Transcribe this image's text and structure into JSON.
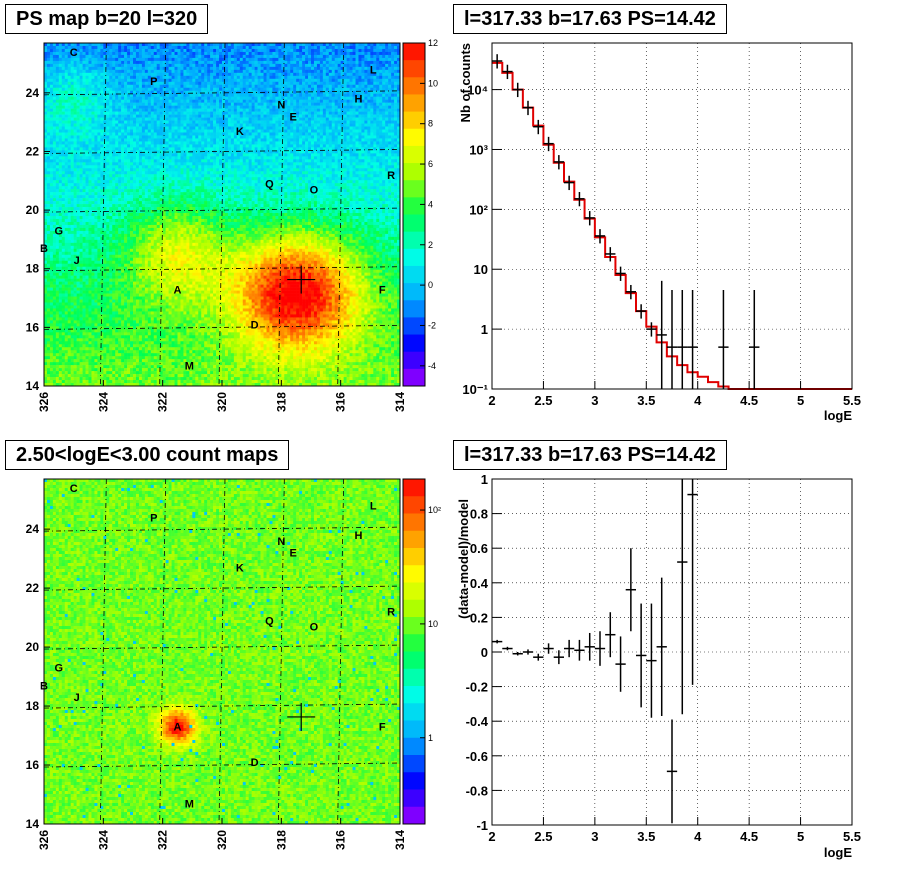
{
  "titles": {
    "top_left": "PS map b=20 l=320",
    "bottom_left": "2.50<logE<3.00 count maps",
    "top_right": "l=317.33 b=17.63 PS=14.42",
    "bottom_right": "l=317.33 b=17.63 PS=14.42"
  },
  "chart_data": [
    {
      "type": "heatmap",
      "title": "PS map b=20 l=320",
      "xlim": [
        326,
        314
      ],
      "ylim": [
        14,
        25.7
      ],
      "x_ticks": [
        "326",
        "324",
        "322",
        "320",
        "318",
        "316",
        "314"
      ],
      "y_ticks": [
        "14",
        "16",
        "18",
        "20",
        "22",
        "24"
      ],
      "colorbar": {
        "min": -5,
        "max": 12,
        "ticks": [
          "12",
          "10",
          "8",
          "6",
          "4",
          "2",
          "0",
          "-2",
          "-4"
        ]
      },
      "sources": [
        {
          "label": "C",
          "l": 325.0,
          "b": 25.4
        },
        {
          "label": "P",
          "l": 322.3,
          "b": 24.4
        },
        {
          "label": "L",
          "l": 314.9,
          "b": 24.8
        },
        {
          "label": "N",
          "l": 318.0,
          "b": 23.6
        },
        {
          "label": "E",
          "l": 317.6,
          "b": 23.2
        },
        {
          "label": "H",
          "l": 315.4,
          "b": 23.8
        },
        {
          "label": "K",
          "l": 319.4,
          "b": 22.7
        },
        {
          "label": "R",
          "l": 314.3,
          "b": 21.2
        },
        {
          "label": "Q",
          "l": 318.4,
          "b": 20.9
        },
        {
          "label": "O",
          "l": 316.9,
          "b": 20.7
        },
        {
          "label": "G",
          "l": 325.5,
          "b": 19.3
        },
        {
          "label": "B",
          "l": 326.0,
          "b": 18.7
        },
        {
          "label": "J",
          "l": 324.9,
          "b": 18.3
        },
        {
          "label": "A",
          "l": 321.5,
          "b": 17.3
        },
        {
          "label": "F",
          "l": 314.6,
          "b": 17.3
        },
        {
          "label": "D",
          "l": 318.9,
          "b": 16.1
        },
        {
          "label": "M",
          "l": 321.1,
          "b": 14.7
        }
      ],
      "marker": {
        "l": 317.33,
        "b": 17.63
      }
    },
    {
      "type": "heatmap",
      "title": "2.50<logE<3.00 count maps",
      "xlim": [
        326,
        314
      ],
      "ylim": [
        14,
        25.7
      ],
      "x_ticks": [
        "326",
        "324",
        "322",
        "320",
        "318",
        "316",
        "314"
      ],
      "y_ticks": [
        "14",
        "16",
        "18",
        "20",
        "22",
        "24"
      ],
      "colorbar": {
        "scale": "log",
        "ticks": [
          "10²",
          "10",
          "1"
        ]
      },
      "sources": [
        {
          "label": "C",
          "l": 325.0,
          "b": 25.4
        },
        {
          "label": "P",
          "l": 322.3,
          "b": 24.4
        },
        {
          "label": "L",
          "l": 314.9,
          "b": 24.8
        },
        {
          "label": "N",
          "l": 318.0,
          "b": 23.6
        },
        {
          "label": "E",
          "l": 317.6,
          "b": 23.2
        },
        {
          "label": "H",
          "l": 315.4,
          "b": 23.8
        },
        {
          "label": "K",
          "l": 319.4,
          "b": 22.7
        },
        {
          "label": "R",
          "l": 314.3,
          "b": 21.2
        },
        {
          "label": "Q",
          "l": 318.4,
          "b": 20.9
        },
        {
          "label": "O",
          "l": 316.9,
          "b": 20.7
        },
        {
          "label": "G",
          "l": 325.5,
          "b": 19.3
        },
        {
          "label": "B",
          "l": 326.0,
          "b": 18.7
        },
        {
          "label": "J",
          "l": 324.9,
          "b": 18.3
        },
        {
          "label": "A",
          "l": 321.5,
          "b": 17.3
        },
        {
          "label": "F",
          "l": 314.6,
          "b": 17.3
        },
        {
          "label": "D",
          "l": 318.9,
          "b": 16.1
        },
        {
          "label": "M",
          "l": 321.1,
          "b": 14.7
        }
      ],
      "marker": {
        "l": 317.33,
        "b": 17.63
      }
    },
    {
      "type": "line",
      "title": "l=317.33 b=17.63 PS=14.42",
      "xlabel": "logE",
      "ylabel": "Nb of counts",
      "yscale": "log",
      "xlim": [
        2,
        5.5
      ],
      "ylim": [
        0.1,
        60000
      ],
      "x_ticks": [
        "2",
        "2.5",
        "3",
        "3.5",
        "4",
        "4.5",
        "5",
        "5.5"
      ],
      "y_ticks": [
        "10⁻¹",
        "1",
        "10",
        "10²",
        "10³",
        "10⁴"
      ],
      "grid": true,
      "series": [
        {
          "style": "histogram",
          "color": "#e00000",
          "x": [
            2.0,
            2.1,
            2.2,
            2.3,
            2.4,
            2.5,
            2.6,
            2.7,
            2.8,
            2.9,
            3.0,
            3.1,
            3.2,
            3.3,
            3.4,
            3.5,
            3.6,
            3.7,
            3.8,
            3.9,
            4.0,
            4.1,
            4.2,
            4.3,
            4.4,
            4.5,
            4.6,
            4.7,
            4.8,
            4.9,
            5.0,
            5.1,
            5.2,
            5.3,
            5.4
          ],
          "y": [
            28000,
            19000,
            10000,
            5000,
            2500,
            1200,
            600,
            290,
            145,
            70,
            34,
            16,
            8,
            4,
            2,
            1.1,
            0.6,
            0.35,
            0.25,
            0.19,
            0.16,
            0.13,
            0.11,
            0.1,
            0.1,
            0.1,
            0.1,
            0.1,
            0.1,
            0.1,
            0.1,
            0.1,
            0.1,
            0.1,
            0.1
          ]
        },
        {
          "style": "points",
          "color": "#000000",
          "x": [
            2.05,
            2.15,
            2.25,
            2.35,
            2.45,
            2.55,
            2.65,
            2.75,
            2.85,
            2.95,
            3.05,
            3.15,
            3.25,
            3.35,
            3.45,
            3.55,
            3.65,
            3.75,
            3.85,
            3.95,
            4.25,
            4.55
          ],
          "y": [
            30000,
            20000,
            10000,
            5000,
            2400,
            1250,
            620,
            280,
            150,
            72,
            36,
            18,
            8.5,
            4.2,
            2.0,
            1.0,
            0.8,
            0.5,
            0.5,
            0.5,
            0.5,
            0.5
          ]
        }
      ]
    },
    {
      "type": "scatter",
      "title": "l=317.33 b=17.63 PS=14.42",
      "xlabel": "logE",
      "ylabel": "(data-model)/model",
      "xlim": [
        2,
        5.5
      ],
      "ylim": [
        -1,
        1
      ],
      "x_ticks": [
        "2",
        "2.5",
        "3",
        "3.5",
        "4",
        "4.5",
        "5",
        "5.5"
      ],
      "y_ticks": [
        "-1",
        "-0.8",
        "-0.6",
        "-0.4",
        "-0.2",
        "0",
        "0.2",
        "0.4",
        "0.6",
        "0.8",
        "1"
      ],
      "grid": true,
      "series": [
        {
          "name": "",
          "x": [
            2.05,
            2.15,
            2.25,
            2.35,
            2.45,
            2.55,
            2.65,
            2.75,
            2.85,
            2.95,
            3.05,
            3.15,
            3.25,
            3.35,
            3.45,
            3.55,
            3.65,
            3.75,
            3.85,
            3.95
          ],
          "y": [
            0.06,
            0.02,
            -0.01,
            0.0,
            -0.03,
            0.02,
            -0.03,
            0.02,
            0.01,
            0.03,
            0.02,
            0.1,
            -0.07,
            0.36,
            -0.02,
            -0.05,
            0.03,
            -0.69,
            0.52,
            0.91
          ],
          "err": [
            0.01,
            0.01,
            0.01,
            0.015,
            0.02,
            0.03,
            0.04,
            0.05,
            0.06,
            0.08,
            0.1,
            0.13,
            0.16,
            0.24,
            0.3,
            0.33,
            0.4,
            0.3,
            0.88,
            1.1
          ]
        }
      ]
    }
  ]
}
